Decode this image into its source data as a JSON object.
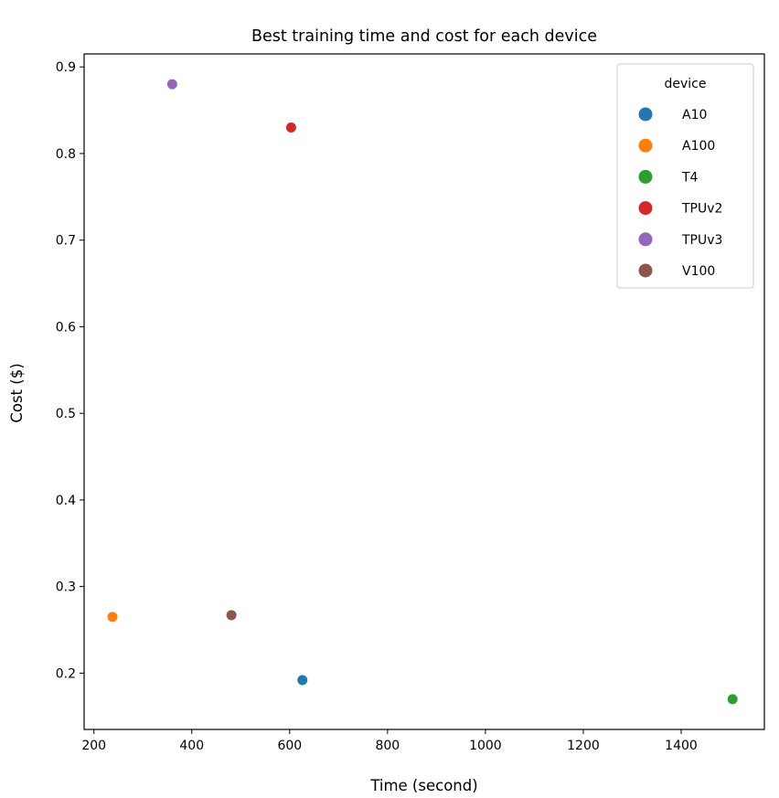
{
  "chart_data": {
    "type": "scatter",
    "title": "Best training time and cost for each device",
    "xlabel": "Time (second)",
    "ylabel": "Cost ($)",
    "xlim": [
      180,
      1570
    ],
    "ylim": [
      0.135,
      0.915
    ],
    "xticks": [
      200,
      400,
      600,
      800,
      1000,
      1200,
      1400
    ],
    "yticks": [
      0.2,
      0.3,
      0.4,
      0.5,
      0.6,
      0.7,
      0.8,
      0.9
    ],
    "grid": false,
    "legend": {
      "title": "device",
      "placement": "top-right"
    },
    "series": [
      {
        "name": "A10",
        "color": "#1f77b4",
        "points": [
          {
            "x": 626,
            "y": 0.192
          }
        ]
      },
      {
        "name": "A100",
        "color": "#ff7f0e",
        "points": [
          {
            "x": 238,
            "y": 0.265
          }
        ]
      },
      {
        "name": "T4",
        "color": "#2ca02c",
        "points": [
          {
            "x": 1505,
            "y": 0.17
          }
        ]
      },
      {
        "name": "TPUv2",
        "color": "#d62728",
        "points": [
          {
            "x": 603,
            "y": 0.83
          }
        ]
      },
      {
        "name": "TPUv3",
        "color": "#9467bd",
        "points": [
          {
            "x": 360,
            "y": 0.88
          }
        ]
      },
      {
        "name": "V100",
        "color": "#8c564b",
        "points": [
          {
            "x": 481,
            "y": 0.267
          }
        ]
      }
    ]
  }
}
